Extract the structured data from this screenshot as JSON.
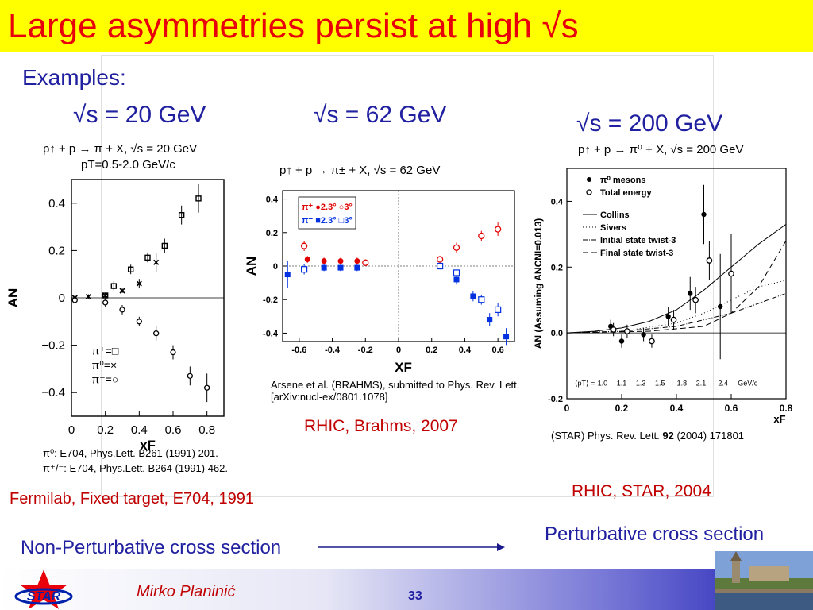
{
  "slide": {
    "title": "Large asymmetries persist at high √s",
    "examples": "Examples:",
    "energy_20": "√s = 20 GeV",
    "energy_62": "√s = 62 GeV",
    "energy_200": "√s = 200 GeV",
    "footer_author": "Mirko Planinić",
    "footer_page": "33",
    "star_logo": "STAR",
    "bottom_left": "Non-Perturbative cross section",
    "bottom_right": "Perturbative cross section"
  },
  "panel_e704": {
    "caption_line1": "p↑ + p → π + X, √s = 20 GeV",
    "caption_line2": "pT=0.5-2.0 GeV/c",
    "ref1": "π⁰: E704, Phys.Lett. B261 (1991) 201.",
    "ref2": "π⁺/⁻: E704, Phys.Lett. B264 (1991) 462.",
    "label": "Fermilab, Fixed target, E704, 1991"
  },
  "panel_brahms": {
    "caption": "p↑ + p → π± + X, √s = 62 GeV",
    "reference": "Arsene et al. (BRAHMS), submitted to Phys. Rev. Lett. [arXiv:nucl-ex/0801.1078]",
    "label": "RHIC, Brahms, 2007"
  },
  "panel_star": {
    "caption": "p↑ + p → π⁰ + X, √s = 200 GeV",
    "reference_pre": "(STAR) Phys. Rev. Lett. ",
    "reference_vol": "92",
    "reference_post": " (2004) 171801",
    "label": "RHIC, STAR, 2004"
  },
  "chart_data": [
    {
      "type": "scatter",
      "title": "",
      "xlabel": "xF",
      "ylabel": "AN",
      "xlim": [
        0,
        0.9
      ],
      "ylim": [
        -0.5,
        0.5
      ],
      "xticks": [
        "0",
        "0.2",
        "0.4",
        "0.6",
        "0.8"
      ],
      "yticks": [
        "0.4",
        "0.2",
        "0",
        "−0.2",
        "−0.4"
      ],
      "legend": [
        "π⁺=□",
        "π⁰=×",
        "π⁻=○"
      ],
      "series": [
        {
          "name": "π⁺",
          "x": [
            0.2,
            0.25,
            0.35,
            0.45,
            0.55,
            0.65,
            0.75
          ],
          "y": [
            0.01,
            0.05,
            0.12,
            0.17,
            0.22,
            0.35,
            0.42
          ],
          "err": [
            0.01,
            0.02,
            0.02,
            0.02,
            0.03,
            0.04,
            0.06
          ]
        },
        {
          "name": "π⁰",
          "x": [
            0.02,
            0.1,
            0.2,
            0.3,
            0.4,
            0.5
          ],
          "y": [
            0.0,
            0.005,
            0.01,
            0.03,
            0.06,
            0.15
          ],
          "err": [
            0.01,
            0.01,
            0.01,
            0.01,
            0.02,
            0.04
          ]
        },
        {
          "name": "π⁻",
          "x": [
            0.02,
            0.2,
            0.3,
            0.4,
            0.5,
            0.6,
            0.7,
            0.8
          ],
          "y": [
            -0.01,
            -0.02,
            -0.05,
            -0.1,
            -0.15,
            -0.23,
            -0.33,
            -0.38
          ],
          "err": [
            0.01,
            0.02,
            0.02,
            0.02,
            0.03,
            0.03,
            0.04,
            0.06
          ]
        }
      ]
    },
    {
      "type": "scatter",
      "title": "",
      "xlabel": "XF",
      "ylabel": "AN",
      "xlim": [
        -0.7,
        0.7
      ],
      "ylim": [
        -0.45,
        0.45
      ],
      "xticks": [
        "-0.6",
        "-0.4",
        "-0.2",
        "0",
        "0.2",
        "0.4",
        "0.6"
      ],
      "yticks": [
        "0.4",
        "0.2",
        "0",
        "-0.2",
        "-0.4"
      ],
      "legend": [
        "π⁺ ●2.3° ○3°",
        "π⁻ ■2.3° □3°"
      ],
      "series": [
        {
          "name": "π⁺ 2.3°",
          "x": [
            -0.55,
            -0.45,
            -0.35,
            -0.25
          ],
          "y": [
            0.04,
            0.03,
            0.03,
            0.03
          ],
          "err": [
            0.02,
            0.02,
            0.02,
            0.02
          ]
        },
        {
          "name": "π⁺ 3°",
          "x": [
            -0.57,
            -0.2,
            0.25,
            0.35,
            0.5,
            0.6
          ],
          "y": [
            0.12,
            0.02,
            0.04,
            0.11,
            0.18,
            0.22
          ],
          "err": [
            0.03,
            0.02,
            0.02,
            0.03,
            0.03,
            0.04
          ]
        },
        {
          "name": "π⁻ 2.3°",
          "x": [
            -0.67,
            -0.45,
            -0.35,
            -0.25,
            0.35,
            0.45,
            0.55,
            0.65
          ],
          "y": [
            -0.05,
            -0.01,
            -0.01,
            -0.01,
            -0.08,
            -0.18,
            -0.32,
            -0.42
          ],
          "err": [
            0.08,
            0.02,
            0.02,
            0.02,
            0.03,
            0.03,
            0.04,
            0.05
          ]
        },
        {
          "name": "π⁻ 3°",
          "x": [
            -0.57,
            0.25,
            0.35,
            0.5,
            0.6
          ],
          "y": [
            -0.02,
            0.0,
            -0.04,
            -0.2,
            -0.26
          ],
          "err": [
            0.03,
            0.02,
            0.02,
            0.03,
            0.04
          ]
        }
      ]
    },
    {
      "type": "scatter",
      "title": "",
      "xlabel": "xF",
      "ylabel": "AN (Assuming ANCNI=0.013)",
      "xlim": [
        0,
        0.8
      ],
      "ylim": [
        -0.2,
        0.5
      ],
      "xticks": [
        "0",
        "0.2",
        "0.4",
        "0.6",
        "0.8"
      ],
      "yticks": [
        "0.4",
        "0.2",
        "0.0",
        "-0.2"
      ],
      "pt_label": "⟨pT⟩ =",
      "pt_values": [
        "1.0",
        "1.1",
        "1.3",
        "1.5",
        "1.8",
        "2.1",
        "2.4",
        "GeV/c"
      ],
      "legend": [
        "π⁰ mesons",
        "Total energy",
        "Collins",
        "Sivers",
        "Initial state twist-3",
        "Final state twist-3"
      ],
      "series": [
        {
          "name": "π⁰ mesons",
          "x": [
            0.16,
            0.2,
            0.28,
            0.37,
            0.45,
            0.5,
            0.56
          ],
          "y": [
            0.02,
            -0.025,
            -0.005,
            0.05,
            0.12,
            0.36,
            0.08
          ],
          "err": [
            0.02,
            0.02,
            0.02,
            0.03,
            0.05,
            0.09,
            0.16
          ]
        },
        {
          "name": "Total energy",
          "x": [
            0.17,
            0.22,
            0.31,
            0.39,
            0.47,
            0.52,
            0.6
          ],
          "y": [
            0.01,
            0.005,
            -0.025,
            0.04,
            0.1,
            0.22,
            0.18
          ],
          "err": [
            0.02,
            0.02,
            0.02,
            0.03,
            0.04,
            0.06,
            0.12
          ]
        },
        {
          "name": "Collins",
          "x": [
            0.0,
            0.1,
            0.2,
            0.3,
            0.4,
            0.5,
            0.6,
            0.7,
            0.8
          ],
          "y": [
            0.0,
            0.005,
            0.015,
            0.035,
            0.07,
            0.13,
            0.2,
            0.27,
            0.33
          ]
        },
        {
          "name": "Sivers",
          "x": [
            0.0,
            0.2,
            0.4,
            0.5,
            0.6,
            0.7,
            0.8
          ],
          "y": [
            0.0,
            0.005,
            0.03,
            0.06,
            0.1,
            0.14,
            0.16
          ]
        },
        {
          "name": "Initial state twist-3",
          "x": [
            0.0,
            0.2,
            0.4,
            0.5,
            0.6,
            0.7,
            0.8
          ],
          "y": [
            0.0,
            0.005,
            0.02,
            0.04,
            0.06,
            0.09,
            0.12
          ]
        },
        {
          "name": "Final state twist-3",
          "x": [
            0.0,
            0.3,
            0.5,
            0.6,
            0.7,
            0.8
          ],
          "y": [
            0.0,
            0.005,
            0.02,
            0.06,
            0.14,
            0.28
          ]
        }
      ]
    }
  ]
}
